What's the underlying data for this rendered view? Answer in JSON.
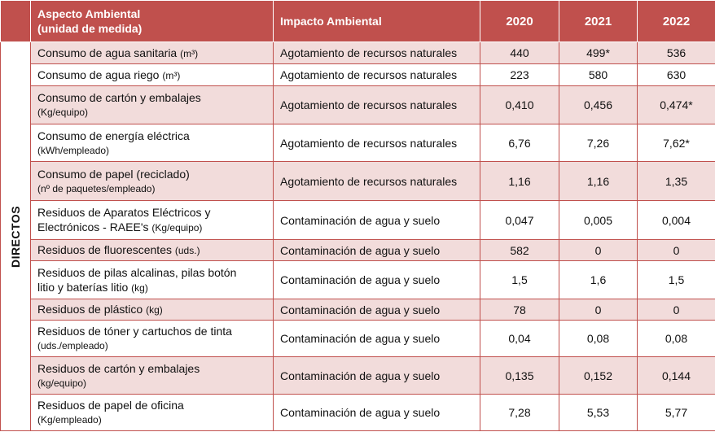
{
  "header": {
    "aspect_line1": "Aspecto Ambiental",
    "aspect_line2": "(unidad de medida)",
    "impact": "Impacto Ambiental",
    "years": [
      "2020",
      "2021",
      "2022"
    ]
  },
  "group_label": "DIRECTOS",
  "rows": [
    {
      "name": "Consumo de agua sanitaria",
      "unit": "(m³)",
      "impact": "Agotamiento de recursos naturales",
      "v2020": "440",
      "v2021": "499*",
      "v2022": "536"
    },
    {
      "name": "Consumo de agua riego",
      "unit": "(m³)",
      "impact": "Agotamiento de recursos naturales",
      "v2020": "223",
      "v2021": "580",
      "v2022": "630"
    },
    {
      "name": "Consumo de cartón y embalajes",
      "unit": "(Kg/equipo)",
      "impact": "Agotamiento de recursos naturales",
      "v2020": "0,410",
      "v2021": "0,456",
      "v2022": "0,474*"
    },
    {
      "name": "Consumo de energía eléctrica",
      "unit": "(kWh/empleado)",
      "impact": "Agotamiento de recursos naturales",
      "v2020": "6,76",
      "v2021": "7,26",
      "v2022": "7,62*"
    },
    {
      "name": "Consumo de papel (reciclado)",
      "unit": "(nº de paquetes/empleado)",
      "impact": "Agotamiento de recursos naturales",
      "v2020": "1,16",
      "v2021": "1,16",
      "v2022": "1,35"
    },
    {
      "name": "Residuos de Aparatos Eléctricos y",
      "name2": "Electrónicos - RAEE's",
      "unit": "(Kg/equipo)",
      "impact": "Contaminación de agua y suelo",
      "v2020": "0,047",
      "v2021": "0,005",
      "v2022": "0,004"
    },
    {
      "name": "Residuos de fluorescentes",
      "unit": "(uds.)",
      "impact": "Contaminación de agua y suelo",
      "v2020": "582",
      "v2021": "0",
      "v2022": "0"
    },
    {
      "name": "Residuos de pilas alcalinas, pilas botón",
      "name2": "litio y baterías litio",
      "unit": "(kg)",
      "impact": "Contaminación de agua y suelo",
      "v2020": "1,5",
      "v2021": "1,6",
      "v2022": "1,5"
    },
    {
      "name": "Residuos de plástico",
      "unit": "(kg)",
      "impact": "Contaminación de agua y suelo",
      "v2020": "78",
      "v2021": "0",
      "v2022": "0"
    },
    {
      "name": "Residuos de tóner y cartuchos de tinta",
      "unit": "(uds./empleado)",
      "impact": "Contaminación de agua y suelo",
      "v2020": "0,04",
      "v2021": "0,08",
      "v2022": "0,08"
    },
    {
      "name": "Residuos de cartón y embalajes",
      "unit": "(kg/equipo)",
      "impact": "Contaminación de agua y suelo",
      "v2020": "0,135",
      "v2021": "0,152",
      "v2022": "0,144"
    },
    {
      "name": "Residuos de papel de oficina",
      "unit": "(Kg/empleado)",
      "impact": "Contaminación de agua y suelo",
      "v2020": "7,28",
      "v2021": "5,53",
      "v2022": "5,77"
    }
  ]
}
